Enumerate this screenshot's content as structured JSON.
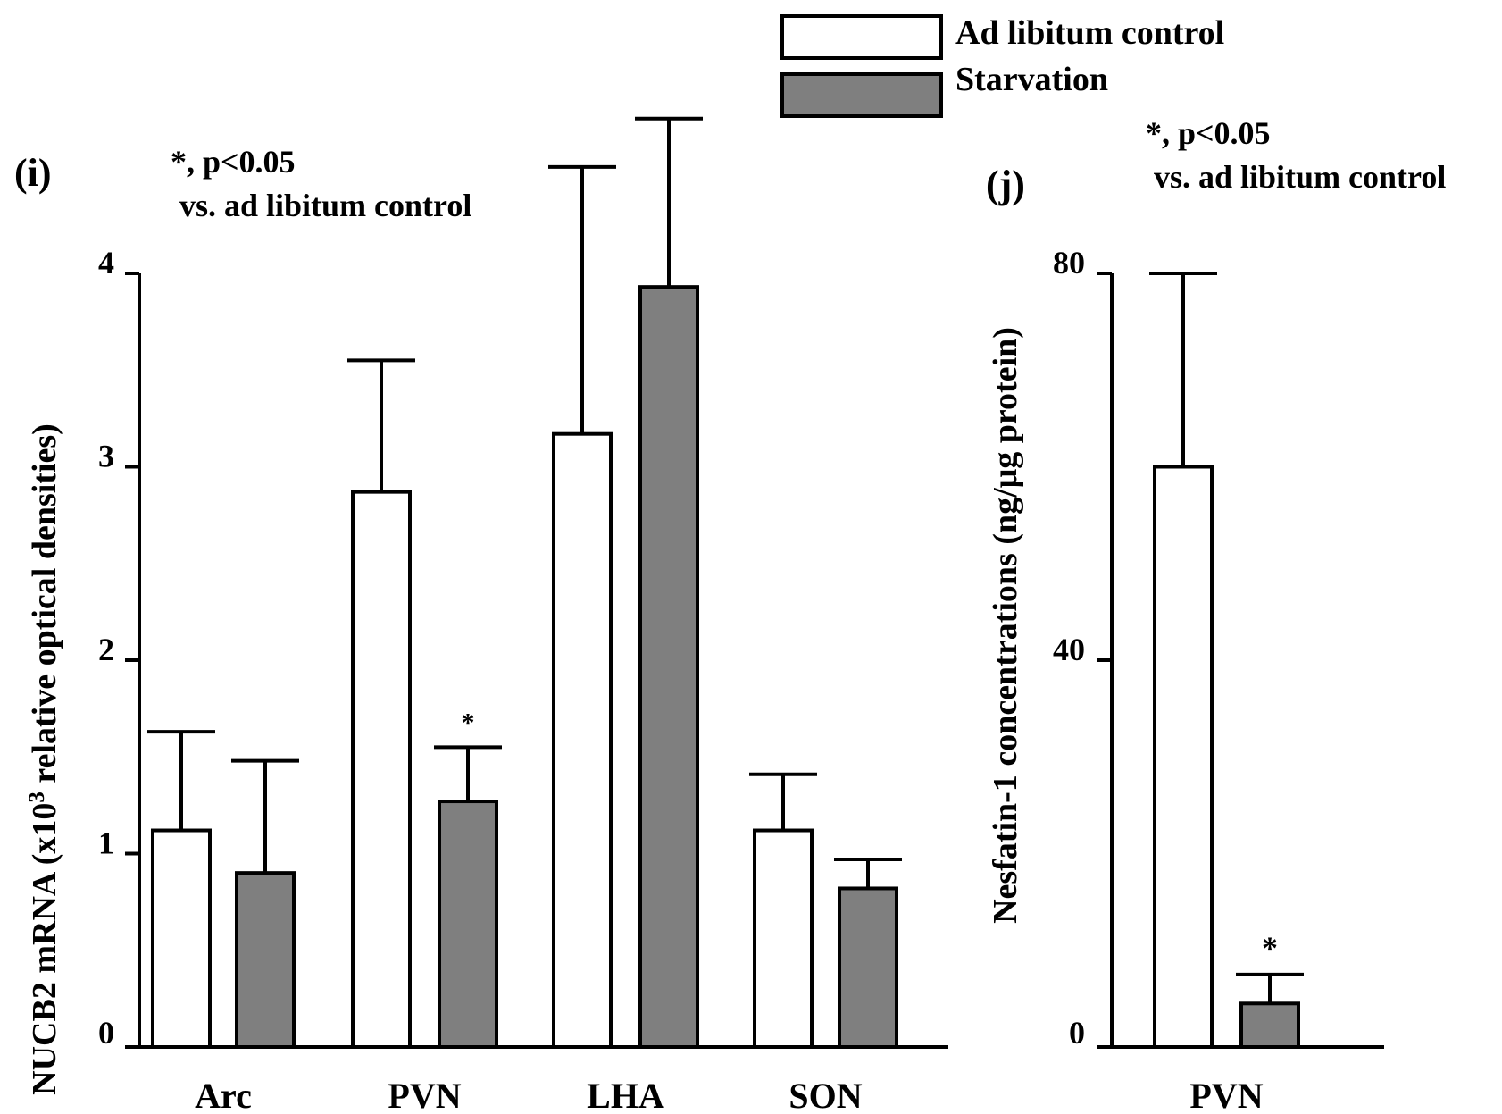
{
  "legend": {
    "items": [
      {
        "label": "Ad libitum control",
        "fill": "#ffffff"
      },
      {
        "label": "Starvation",
        "fill": "#7f7f7f"
      }
    ]
  },
  "chart_data": [
    {
      "type": "bar",
      "panel_label": "(i)",
      "annotation": {
        "line1": "*,  p<0.05",
        "line2": "vs. ad libitum control"
      },
      "ylabel_main": "NUCB2 mRNA (x10",
      "ylabel_sup": "3",
      "ylabel_tail": " relative optical densities)",
      "categories": [
        "Arc",
        "PVN",
        "LHA",
        "SON"
      ],
      "ylim": [
        0,
        4
      ],
      "yticks": [
        0,
        1,
        2,
        3,
        4
      ],
      "series": [
        {
          "name": "Ad libitum control",
          "color": "#ffffff",
          "values": [
            1.12,
            2.87,
            3.17,
            1.12
          ],
          "errors": [
            0.51,
            0.68,
            1.38,
            0.29
          ],
          "sig": [
            "",
            "",
            "",
            ""
          ]
        },
        {
          "name": "Starvation",
          "color": "#7f7f7f",
          "values": [
            0.9,
            1.27,
            3.93,
            0.82
          ],
          "errors": [
            0.58,
            0.28,
            0.87,
            0.15
          ],
          "sig": [
            "",
            "*",
            "",
            ""
          ]
        }
      ]
    },
    {
      "type": "bar",
      "panel_label": "(j)",
      "annotation": {
        "line1": "*,  p<0.05",
        "line2": "vs. ad libitum control"
      },
      "ylabel_main": "Nesfatin-1 concentrations (ng/μg protein)",
      "categories": [
        "PVN"
      ],
      "ylim": [
        0,
        80
      ],
      "yticks": [
        0,
        40,
        80
      ],
      "series": [
        {
          "name": "Ad libitum control",
          "color": "#ffffff",
          "values": [
            60
          ],
          "errors": [
            20
          ],
          "sig": [
            ""
          ]
        },
        {
          "name": "Starvation",
          "color": "#7f7f7f",
          "values": [
            4.5
          ],
          "errors": [
            3
          ],
          "sig": [
            "*"
          ]
        }
      ]
    }
  ]
}
